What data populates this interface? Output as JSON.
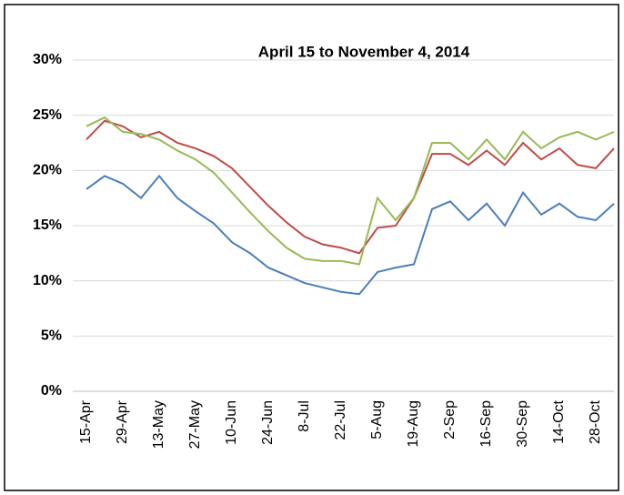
{
  "chart_data": {
    "type": "line",
    "title": "April 15 to November 4, 2014",
    "x": [
      "15-Apr",
      null,
      "29-Apr",
      null,
      "13-May",
      null,
      "27-May",
      null,
      "10-Jun",
      null,
      "24-Jun",
      null,
      "8-Jul",
      null,
      "22-Jul",
      null,
      "5-Aug",
      null,
      "19-Aug",
      null,
      "2-Sep",
      null,
      "16-Sep",
      null,
      "30-Sep",
      null,
      "14-Oct",
      null,
      "28-Oct",
      null
    ],
    "xticks": [
      0,
      2,
      4,
      6,
      8,
      10,
      12,
      14,
      16,
      18,
      20,
      22,
      24,
      26,
      28
    ],
    "ylim": [
      0,
      30
    ],
    "yticks": [
      {
        "value": 0,
        "label": "0%"
      },
      {
        "value": 5,
        "label": "5%"
      },
      {
        "value": 10,
        "label": "10%"
      },
      {
        "value": 15,
        "label": "15%"
      },
      {
        "value": 20,
        "label": "20%"
      },
      {
        "value": 25,
        "label": "25%"
      },
      {
        "value": 30,
        "label": "30%"
      }
    ],
    "grid": true,
    "series": [
      {
        "color": "#4a7ebb",
        "values": [
          18.3,
          19.5,
          18.8,
          17.5,
          19.5,
          17.5,
          16.3,
          15.2,
          13.5,
          12.5,
          11.2,
          10.5,
          9.8,
          9.4,
          9.0,
          8.8,
          10.8,
          11.2,
          11.5,
          16.5,
          17.2,
          15.5,
          17.0,
          15.0,
          18.0,
          16.0,
          17.0,
          15.8,
          15.5,
          17.0
        ]
      },
      {
        "color": "#be4b48",
        "values": [
          22.8,
          24.5,
          24.0,
          23.0,
          23.5,
          22.5,
          22.0,
          21.3,
          20.2,
          18.5,
          16.8,
          15.3,
          14.0,
          13.3,
          13.0,
          12.5,
          14.8,
          15.0,
          17.5,
          21.5,
          21.5,
          20.5,
          21.8,
          20.5,
          22.5,
          21.0,
          22.0,
          20.5,
          20.2,
          22.0
        ]
      },
      {
        "color": "#98b954",
        "values": [
          24.0,
          24.8,
          23.5,
          23.3,
          22.8,
          21.8,
          21.0,
          19.8,
          18.0,
          16.2,
          14.5,
          13.0,
          12.0,
          11.8,
          11.8,
          11.5,
          17.5,
          15.5,
          17.5,
          22.5,
          22.5,
          21.0,
          22.8,
          21.0,
          23.5,
          22.0,
          23.0,
          23.5,
          22.8,
          23.5
        ]
      }
    ]
  }
}
